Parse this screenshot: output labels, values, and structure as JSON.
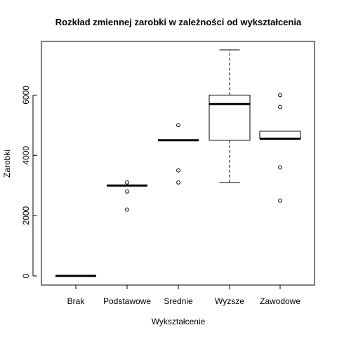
{
  "chart_data": {
    "type": "boxplot",
    "title": "Rozkład zmiennej zarobki w zależności od wykształcenia",
    "xlabel": "Wykształcenie",
    "ylabel": "Zarobki",
    "ylim": [
      -250,
      7800
    ],
    "yticks": [
      0,
      2000,
      4000,
      6000
    ],
    "grid": false,
    "categories": [
      "Brak",
      "Podstawowe",
      "Srednie",
      "Wyzsze",
      "Zawodowe"
    ],
    "boxes": [
      {
        "category": "Brak",
        "min": 0,
        "q1": 0,
        "median": 0,
        "q3": 0,
        "max": 0,
        "outliers": []
      },
      {
        "category": "Podstawowe",
        "min": 3000,
        "q1": 3000,
        "median": 3000,
        "q3": 3000,
        "max": 3000,
        "outliers": [
          3100,
          2800,
          2200
        ]
      },
      {
        "category": "Srednie",
        "min": 4500,
        "q1": 4500,
        "median": 4500,
        "q3": 4500,
        "max": 4500,
        "outliers": [
          5000,
          3500,
          3100
        ]
      },
      {
        "category": "Wyzsze",
        "min": 3100,
        "q1": 4500,
        "median": 5700,
        "q3": 6000,
        "max": 7500,
        "outliers": []
      },
      {
        "category": "Zawodowe",
        "min": 4550,
        "q1": 4550,
        "median": 4550,
        "q3": 4800,
        "max": 4800,
        "outliers": [
          6000,
          5600,
          3600,
          2500
        ]
      }
    ]
  }
}
